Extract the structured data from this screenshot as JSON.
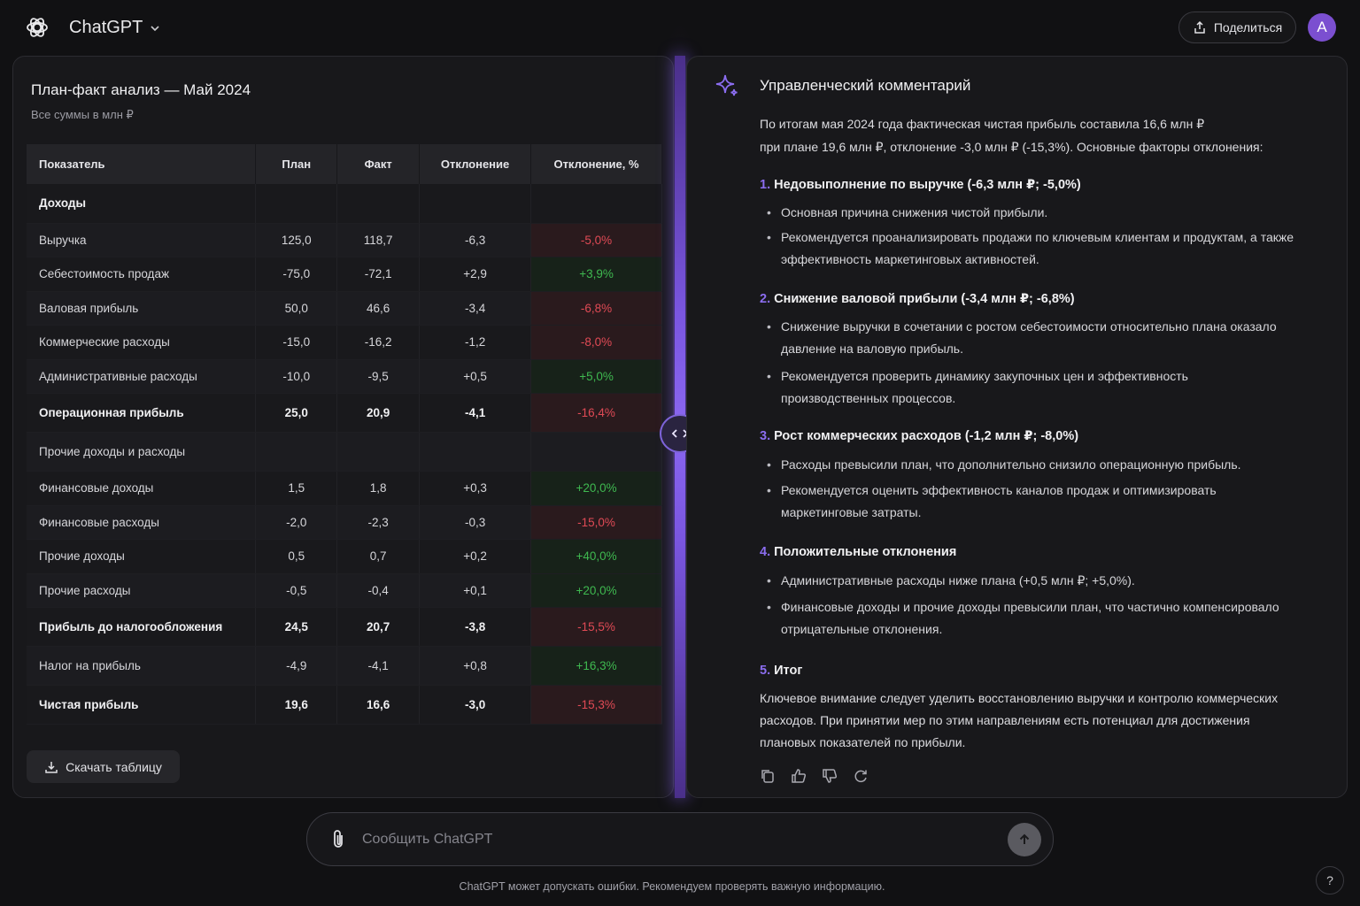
{
  "header": {
    "app_title": "ChatGPT",
    "share_label": "Поделиться",
    "avatar_letter": "A"
  },
  "table": {
    "title": "План-факт анализ — Май 2024",
    "subtitle": "Все суммы в млн ₽",
    "columns": [
      "Показатель",
      "План",
      "Факт",
      "Отклонение",
      "Отклонение, %"
    ],
    "rows": [
      {
        "name": "Доходы",
        "plan": "",
        "fact": "",
        "dev": "",
        "dev_pct": "",
        "bold": true,
        "trend": ""
      },
      {
        "name": "Выручка",
        "plan": "125,0",
        "fact": "118,7",
        "dev": "-6,3",
        "dev_pct": "-5,0%",
        "bold": false,
        "trend": "neg"
      },
      {
        "name": "Себестоимость продаж",
        "plan": "-75,0",
        "fact": "-72,1",
        "dev": "+2,9",
        "dev_pct": "+3,9%",
        "bold": false,
        "trend": "pos"
      },
      {
        "name": "Валовая прибыль",
        "plan": "50,0",
        "fact": "46,6",
        "dev": "-3,4",
        "dev_pct": "-6,8%",
        "bold": false,
        "trend": "neg"
      },
      {
        "name": "Коммерческие расходы",
        "plan": "-15,0",
        "fact": "-16,2",
        "dev": "-1,2",
        "dev_pct": "-8,0%",
        "bold": false,
        "trend": "neg"
      },
      {
        "name": "Административные расходы",
        "plan": "-10,0",
        "fact": "-9,5",
        "dev": "+0,5",
        "dev_pct": "+5,0%",
        "bold": false,
        "trend": "pos"
      },
      {
        "name": "Операционная прибыль",
        "plan": "25,0",
        "fact": "20,9",
        "dev": "-4,1",
        "dev_pct": "-16,4%",
        "bold": true,
        "trend": "neg"
      },
      {
        "name": "Прочие доходы и расходы",
        "plan": "",
        "fact": "",
        "dev": "",
        "dev_pct": "",
        "bold": false,
        "trend": ""
      },
      {
        "name": "Финансовые доходы",
        "plan": "1,5",
        "fact": "1,8",
        "dev": "+0,3",
        "dev_pct": "+20,0%",
        "bold": false,
        "trend": "pos"
      },
      {
        "name": "Финансовые расходы",
        "plan": "-2,0",
        "fact": "-2,3",
        "dev": "-0,3",
        "dev_pct": "-15,0%",
        "bold": false,
        "trend": "neg"
      },
      {
        "name": "Прочие доходы",
        "plan": "0,5",
        "fact": "0,7",
        "dev": "+0,2",
        "dev_pct": "+40,0%",
        "bold": false,
        "trend": "pos"
      },
      {
        "name": "Прочие расходы",
        "plan": "-0,5",
        "fact": "-0,4",
        "dev": "+0,1",
        "dev_pct": "+20,0%",
        "bold": false,
        "trend": "pos"
      },
      {
        "name": "Прибыль до налогообложения",
        "plan": "24,5",
        "fact": "20,7",
        "dev": "-3,8",
        "dev_pct": "-15,5%",
        "bold": true,
        "trend": "neg"
      },
      {
        "name": "Налог на прибыль",
        "plan": "-4,9",
        "fact": "-4,1",
        "dev": "+0,8",
        "dev_pct": "+16,3%",
        "bold": false,
        "trend": "pos"
      },
      {
        "name": "Чистая прибыль",
        "plan": "19,6",
        "fact": "16,6",
        "dev": "-3,0",
        "dev_pct": "-15,3%",
        "bold": true,
        "trend": "neg"
      }
    ],
    "download_label": "Скачать таблицу"
  },
  "commentary": {
    "title": "Управленческий комментарий",
    "intro_line1": "По итогам мая 2024 года фактическая чистая прибыль составила 16,6 млн ₽",
    "intro_line2": "при плане 19,6 млн ₽, отклонение -3,0 млн ₽ (-15,3%). Основные факторы отклонения:",
    "sections": [
      {
        "num": "1.",
        "title": "Недовыполнение по выручке (-6,3 млн ₽; -5,0%)",
        "bullets": [
          "Основная причина снижения чистой прибыли.",
          "Рекомендуется проанализировать продажи по ключевым клиентам и продуктам, а также эффективность маркетинговых активностей."
        ]
      },
      {
        "num": "2.",
        "title": "Снижение валовой прибыли (-3,4 млн ₽; -6,8%)",
        "bullets": [
          "Снижение выручки в сочетании с ростом себестоимости относительно плана оказало давление на валовую прибыль.",
          "Рекомендуется проверить динамику закупочных цен и эффективность производственных процессов."
        ]
      },
      {
        "num": "3.",
        "title": "Рост коммерческих расходов (-1,2 млн ₽; -8,0%)",
        "bullets": [
          "Расходы превысили план, что дополнительно снизило операционную прибыль.",
          "Рекомендуется оценить эффективность каналов продаж и оптимизировать маркетинговые затраты."
        ]
      },
      {
        "num": "4.",
        "title": "Положительные отклонения",
        "bullets": [
          "Административные расходы ниже плана (+0,5 млн ₽; +5,0%).",
          "Финансовые доходы и прочие доходы превысили план, что частично компенсировало отрицательные отклонения."
        ]
      },
      {
        "num": "5.",
        "title": "Итог",
        "bullets": []
      }
    ],
    "final_text": "Ключевое внимание следует уделить восстановлению выручки и контролю коммерческих расходов. При принятии мер по этим направлениям есть потенциал для достижения плановых показателей по прибыли."
  },
  "composer": {
    "placeholder": "Сообщить ChatGPT"
  },
  "footer": {
    "disclaimer": "ChatGPT может допускать ошибки. Рекомендуем проверять важную информацию.",
    "help_label": "?"
  },
  "colors": {
    "accent": "#8b6df0",
    "negative": "#e04a55",
    "positive": "#3fb950",
    "avatar": "#7b4fd0"
  }
}
